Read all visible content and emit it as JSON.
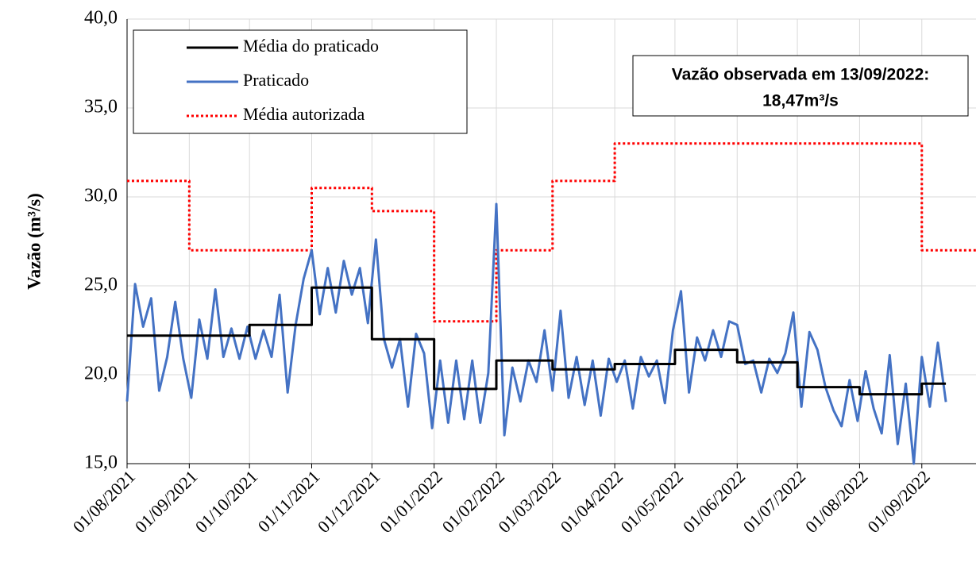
{
  "chart_data": {
    "type": "line",
    "ylabel": "Vazão (m³/s)",
    "ylim": [
      15,
      40
    ],
    "yticks": [
      {
        "value": 15,
        "label": "15,0"
      },
      {
        "value": 20,
        "label": "20,0"
      },
      {
        "value": 25,
        "label": "25,0"
      },
      {
        "value": 30,
        "label": "30,0"
      },
      {
        "value": 35,
        "label": "35,0"
      },
      {
        "value": 40,
        "label": "40,0"
      }
    ],
    "xlim": [
      "01/08/2021",
      "28/09/2022"
    ],
    "xticks": [
      "01/08/2021",
      "01/09/2021",
      "01/10/2021",
      "01/11/2021",
      "01/12/2021",
      "01/01/2022",
      "01/02/2022",
      "01/03/2022",
      "01/04/2022",
      "01/05/2022",
      "01/06/2022",
      "01/07/2022",
      "01/08/2022",
      "01/09/2022"
    ],
    "grid": true,
    "legend": "upper left",
    "annotation": [
      "Vazão observada em 13/09/2022:",
      "18,47m³/s"
    ],
    "annotation_color": "#ff0000",
    "series": [
      {
        "name": "Média do praticado",
        "color": "#000000",
        "style": "solid",
        "x": [
          "01/08/2021",
          "01/09/2021",
          "01/09/2021",
          "01/10/2021",
          "01/10/2021",
          "01/11/2021",
          "01/11/2021",
          "01/12/2021",
          "01/12/2021",
          "01/01/2022",
          "01/01/2022",
          "01/02/2022",
          "01/02/2022",
          "01/03/2022",
          "01/03/2022",
          "01/04/2022",
          "01/04/2022",
          "01/05/2022",
          "01/05/2022",
          "01/06/2022",
          "01/06/2022",
          "01/07/2022",
          "01/07/2022",
          "01/08/2022",
          "01/08/2022",
          "01/09/2022",
          "01/09/2022",
          "13/09/2022"
        ],
        "values": [
          22.2,
          22.2,
          22.2,
          22.2,
          22.8,
          22.8,
          24.9,
          24.9,
          22.0,
          22.0,
          19.2,
          19.2,
          20.8,
          20.8,
          20.3,
          20.3,
          20.6,
          20.6,
          21.4,
          21.4,
          20.7,
          20.7,
          19.3,
          19.3,
          18.9,
          18.9,
          19.5,
          19.5
        ]
      },
      {
        "name": "Praticado",
        "color": "#4472c4",
        "style": "solid",
        "x": [
          "01/08/2021",
          "05/08/2021",
          "09/08/2021",
          "13/08/2021",
          "17/08/2021",
          "21/08/2021",
          "25/08/2021",
          "29/08/2021",
          "02/09/2021",
          "06/09/2021",
          "10/09/2021",
          "14/09/2021",
          "18/09/2021",
          "22/09/2021",
          "26/09/2021",
          "30/09/2021",
          "04/10/2021",
          "08/10/2021",
          "12/10/2021",
          "16/10/2021",
          "20/10/2021",
          "24/10/2021",
          "28/10/2021",
          "01/11/2021",
          "05/11/2021",
          "09/11/2021",
          "13/11/2021",
          "17/11/2021",
          "21/11/2021",
          "25/11/2021",
          "29/11/2021",
          "03/12/2021",
          "07/12/2021",
          "11/12/2021",
          "15/12/2021",
          "19/12/2021",
          "23/12/2021",
          "27/12/2021",
          "31/12/2021",
          "04/01/2022",
          "08/01/2022",
          "12/01/2022",
          "16/01/2022",
          "20/01/2022",
          "24/01/2022",
          "28/01/2022",
          "01/02/2022",
          "05/02/2022",
          "09/02/2022",
          "13/02/2022",
          "17/02/2022",
          "21/02/2022",
          "25/02/2022",
          "01/03/2022",
          "05/03/2022",
          "09/03/2022",
          "13/03/2022",
          "17/03/2022",
          "21/03/2022",
          "25/03/2022",
          "29/03/2022",
          "02/04/2022",
          "06/04/2022",
          "10/04/2022",
          "14/04/2022",
          "18/04/2022",
          "22/04/2022",
          "26/04/2022",
          "30/04/2022",
          "04/05/2022",
          "08/05/2022",
          "12/05/2022",
          "16/05/2022",
          "20/05/2022",
          "24/05/2022",
          "28/05/2022",
          "01/06/2022",
          "05/06/2022",
          "09/06/2022",
          "13/06/2022",
          "17/06/2022",
          "21/06/2022",
          "25/06/2022",
          "29/06/2022",
          "03/07/2022",
          "07/07/2022",
          "11/07/2022",
          "15/07/2022",
          "19/07/2022",
          "23/07/2022",
          "27/07/2022",
          "31/07/2022",
          "04/08/2022",
          "08/08/2022",
          "12/08/2022",
          "16/08/2022",
          "20/08/2022",
          "24/08/2022",
          "28/08/2022",
          "01/09/2022",
          "05/09/2022",
          "09/09/2022",
          "13/09/2022"
        ],
        "values": [
          18.5,
          25.1,
          22.7,
          24.3,
          19.1,
          21.0,
          24.1,
          20.9,
          18.7,
          23.1,
          20.9,
          24.8,
          21.0,
          22.6,
          20.9,
          22.7,
          20.9,
          22.5,
          21.0,
          24.5,
          19.0,
          22.8,
          25.4,
          27.0,
          23.4,
          26.0,
          23.5,
          26.4,
          24.5,
          26.0,
          22.9,
          27.6,
          22.0,
          20.4,
          22.0,
          18.2,
          22.3,
          21.2,
          17.0,
          20.8,
          17.3,
          20.8,
          17.5,
          20.8,
          17.3,
          20.1,
          29.6,
          16.6,
          20.4,
          18.5,
          20.8,
          19.6,
          22.5,
          19.1,
          23.6,
          18.7,
          21.0,
          18.3,
          20.8,
          17.7,
          20.9,
          19.6,
          20.8,
          18.1,
          21.0,
          19.9,
          20.8,
          18.4,
          22.5,
          24.7,
          19.0,
          22.1,
          20.8,
          22.5,
          21.0,
          23.0,
          22.8,
          20.6,
          20.8,
          19.0,
          20.9,
          20.1,
          21.2,
          23.5,
          18.2,
          22.4,
          21.4,
          19.3,
          18.0,
          17.1,
          19.7,
          17.4,
          20.2,
          18.1,
          16.7,
          21.1,
          16.1,
          19.5,
          15.0,
          21.0,
          18.2,
          21.8,
          18.47
        ]
      },
      {
        "name": "Média autorizada",
        "color": "#ff0000",
        "style": "dotted",
        "x": [
          "01/08/2021",
          "01/09/2021",
          "01/09/2021",
          "01/11/2021",
          "01/11/2021",
          "01/12/2021",
          "01/12/2021",
          "01/01/2022",
          "01/01/2022",
          "01/02/2022",
          "01/02/2022",
          "01/03/2022",
          "01/03/2022",
          "01/04/2022",
          "01/04/2022",
          "01/09/2022",
          "01/09/2022",
          "28/09/2022"
        ],
        "values": [
          30.9,
          30.9,
          27.0,
          27.0,
          30.5,
          30.5,
          29.2,
          29.2,
          23.0,
          23.0,
          27.0,
          27.0,
          30.9,
          30.9,
          33.0,
          33.0,
          27.0,
          27.0
        ]
      }
    ]
  }
}
